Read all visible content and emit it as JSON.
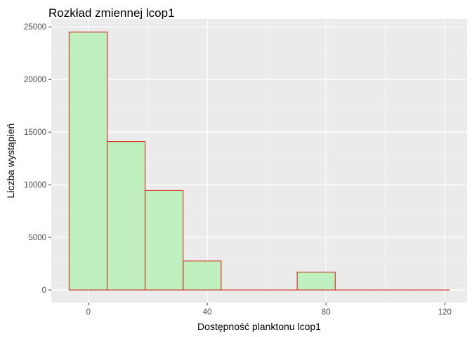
{
  "chart_data": {
    "type": "bar",
    "title": "Rozkład zmiennej lcop1",
    "xlabel": "Dostępność planktonu lcop1",
    "ylabel": "Liczba wystąpień",
    "bins": [
      {
        "x0": -6.5,
        "x1": 6.3,
        "count": 24500
      },
      {
        "x0": 6.3,
        "x1": 19.1,
        "count": 14100
      },
      {
        "x0": 19.1,
        "x1": 31.9,
        "count": 9450
      },
      {
        "x0": 31.9,
        "x1": 44.7,
        "count": 2750
      },
      {
        "x0": 44.7,
        "x1": 57.5,
        "count": 0
      },
      {
        "x0": 57.5,
        "x1": 70.3,
        "count": 0
      },
      {
        "x0": 70.3,
        "x1": 83.1,
        "count": 1700
      },
      {
        "x0": 83.1,
        "x1": 95.9,
        "count": 0
      },
      {
        "x0": 95.9,
        "x1": 108.7,
        "count": 0
      },
      {
        "x0": 108.7,
        "x1": 121.5,
        "count": 0
      }
    ],
    "xlim": [
      -12.5,
      127.5
    ],
    "ylim": [
      -1200,
      25750
    ],
    "x_ticks": [
      0,
      40,
      80,
      120
    ],
    "y_ticks": [
      0,
      5000,
      10000,
      15000,
      20000,
      25000
    ],
    "x_tick_labels": [
      "0",
      "40",
      "80",
      "120"
    ],
    "y_tick_labels": [
      "0",
      "5000",
      "10000",
      "15000",
      "20000",
      "25000"
    ],
    "grid": true,
    "colors": {
      "panel_bg": "#ebebeb",
      "grid_major": "#ffffff",
      "grid_minor": "#f5f5f5",
      "bar_fill": "#c0efc0",
      "bar_stroke": "#cc1a0a",
      "tick_text": "#4d4d4d"
    }
  }
}
